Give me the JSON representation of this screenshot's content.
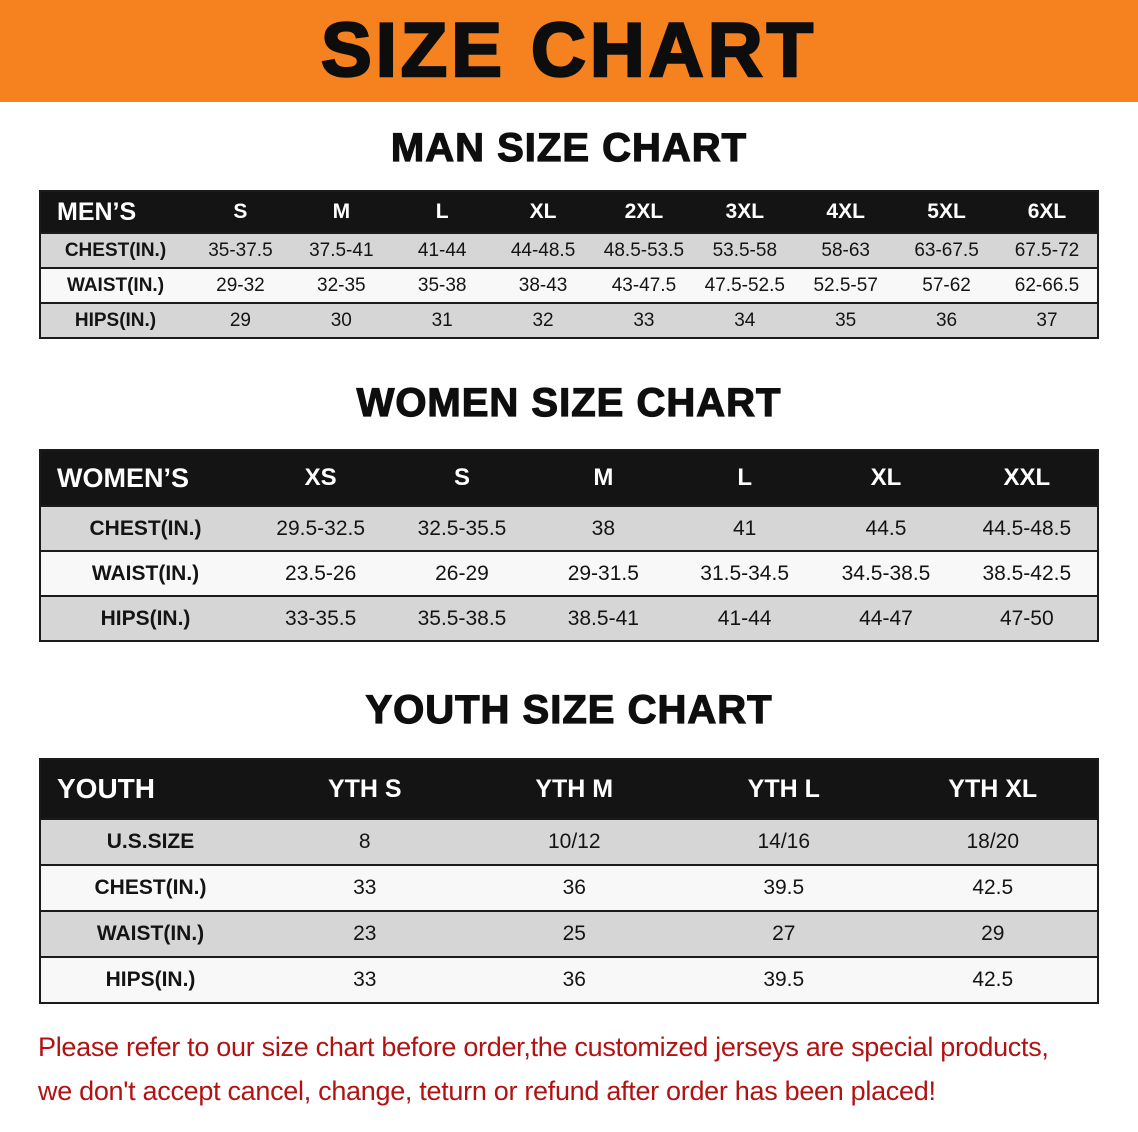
{
  "banner": {
    "title": "SIZE CHART"
  },
  "colors": {
    "banner_bg": "#f5821e",
    "table_header_bg": "#141414",
    "row_gray": "#d6d6d6",
    "row_light": "#f8f8f8",
    "disclaimer_red": "#b31212"
  },
  "sections": [
    {
      "id": "men",
      "heading": "MAN SIZE CHART",
      "table": {
        "header": [
          "MEN’S",
          "S",
          "M",
          "L",
          "XL",
          "2XL",
          "3XL",
          "4XL",
          "5XL",
          "6XL"
        ],
        "rows": [
          [
            "CHEST(IN.)",
            "35-37.5",
            "37.5-41",
            "41-44",
            "44-48.5",
            "48.5-53.5",
            "53.5-58",
            "58-63",
            "63-67.5",
            "67.5-72"
          ],
          [
            "WAIST(IN.)",
            "29-32",
            "32-35",
            "35-38",
            "38-43",
            "43-47.5",
            "47.5-52.5",
            "52.5-57",
            "57-62",
            "62-66.5"
          ],
          [
            "HIPS(IN.)",
            "29",
            "30",
            "31",
            "32",
            "33",
            "34",
            "35",
            "36",
            "37"
          ]
        ]
      }
    },
    {
      "id": "women",
      "heading": "WOMEN SIZE CHART",
      "table": {
        "header": [
          "WOMEN’S",
          "XS",
          "S",
          "M",
          "L",
          "XL",
          "XXL"
        ],
        "rows": [
          [
            "CHEST(IN.)",
            "29.5-32.5",
            "32.5-35.5",
            "38",
            "41",
            "44.5",
            "44.5-48.5"
          ],
          [
            "WAIST(IN.)",
            "23.5-26",
            "26-29",
            "29-31.5",
            "31.5-34.5",
            "34.5-38.5",
            "38.5-42.5"
          ],
          [
            "HIPS(IN.)",
            "33-35.5",
            "35.5-38.5",
            "38.5-41",
            "41-44",
            "44-47",
            "47-50"
          ]
        ]
      }
    },
    {
      "id": "youth",
      "heading": "YOUTH SIZE CHART",
      "table": {
        "header": [
          "YOUTH",
          "YTH S",
          "YTH M",
          "YTH L",
          "YTH XL"
        ],
        "rows": [
          [
            "U.S.SIZE",
            "8",
            "10/12",
            "14/16",
            "18/20"
          ],
          [
            "CHEST(IN.)",
            "33",
            "36",
            "39.5",
            "42.5"
          ],
          [
            "WAIST(IN.)",
            "23",
            "25",
            "27",
            "29"
          ],
          [
            "HIPS(IN.)",
            "33",
            "36",
            "39.5",
            "42.5"
          ]
        ]
      }
    }
  ],
  "footer": {
    "line1": "Please refer to our size chart before order,the customized jerseys are special products,",
    "line2": "we don't accept cancel, change, teturn or refund after order has been placed!"
  }
}
